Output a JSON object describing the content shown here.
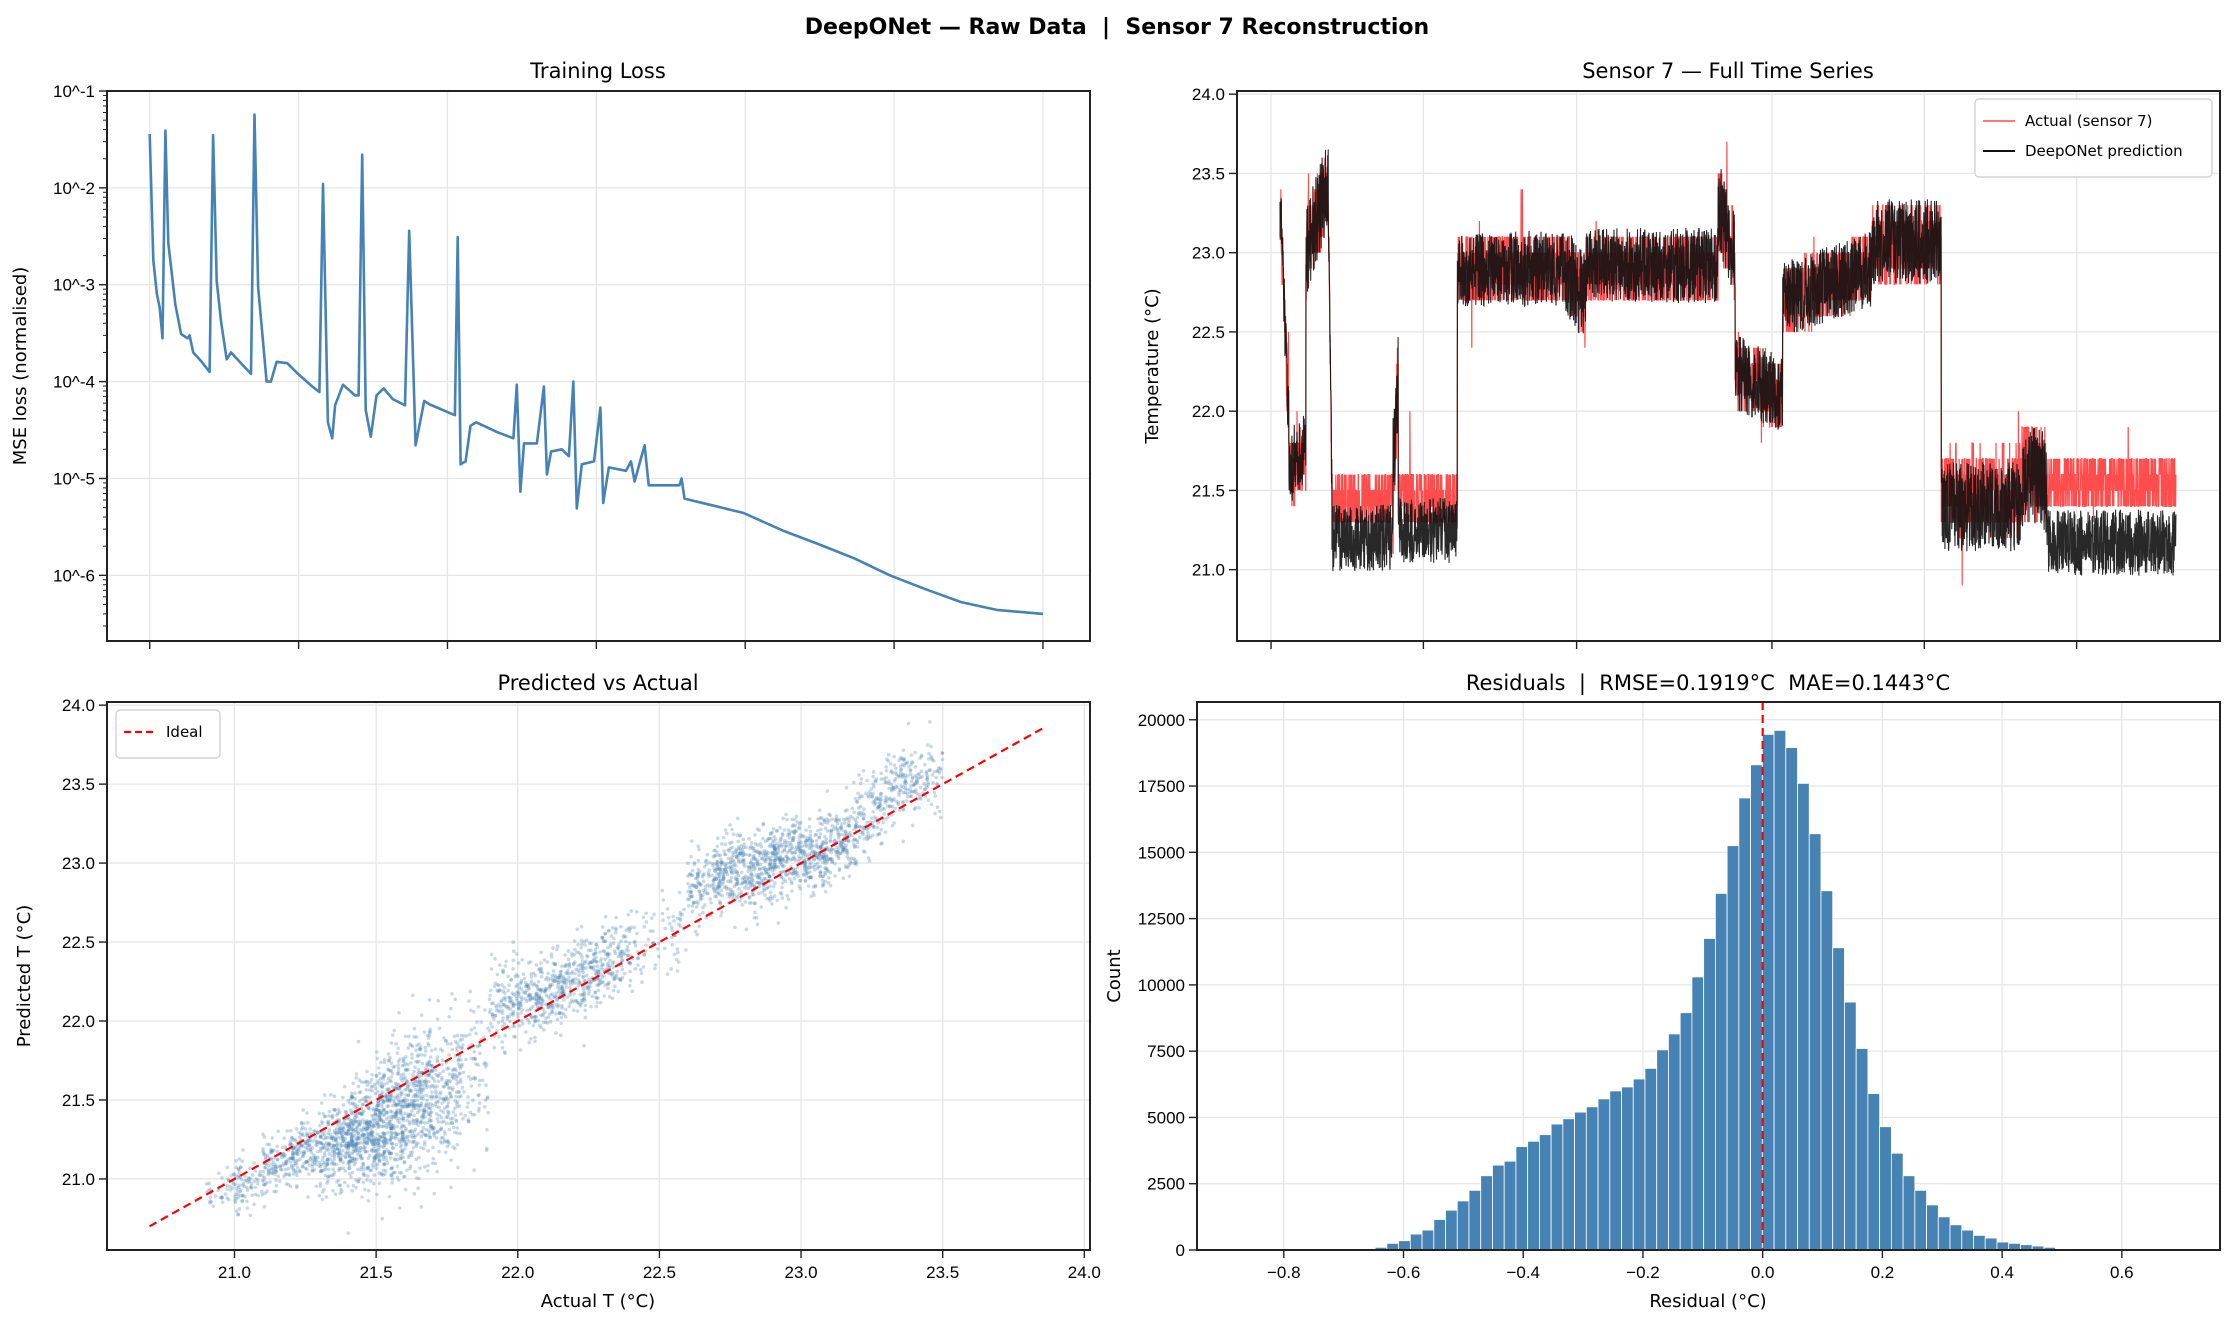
{
  "figure_title": "DeepONet — Raw Data  |  Sensor 7 Reconstruction",
  "colors": {
    "loss": "#4682b4",
    "actual": "#ff4d4d",
    "prediction": "#111111",
    "ideal": "#ff0000",
    "hist": "#4682b4",
    "zero_line": "#ff0000",
    "grid": "#e6e6e6"
  },
  "chart_data": [
    {
      "id": "training-loss",
      "type": "line",
      "title": "Training Loss",
      "xlabel": "",
      "ylabel": "MSE loss (normalised)",
      "yscale": "log",
      "ylim": [
        2.1e-07,
        0.1
      ],
      "xlim": [
        -287,
        6316
      ],
      "xticks": [
        0,
        1000,
        2000,
        3000,
        4000,
        5000,
        6000
      ],
      "xtick_labels_shown": false,
      "yticks": [
        1e-06,
        1e-05,
        0.0001,
        0.001,
        0.01,
        0.1
      ],
      "ytick_labels": [
        "10^-6",
        "10^-5",
        "10^-4",
        "10^-3",
        "10^-2",
        "10^-1"
      ],
      "grid": true,
      "points": [
        [
          0,
          0.036
        ],
        [
          24,
          0.0018
        ],
        [
          48,
          0.0008
        ],
        [
          67,
          0.00058
        ],
        [
          86,
          0.00028
        ],
        [
          105,
          0.039
        ],
        [
          125,
          0.0027
        ],
        [
          172,
          0.00063
        ],
        [
          211,
          0.00031
        ],
        [
          254,
          0.00028
        ],
        [
          268,
          0.0003
        ],
        [
          292,
          0.0002
        ],
        [
          349,
          0.00016
        ],
        [
          402,
          0.000126
        ],
        [
          426,
          0.035
        ],
        [
          450,
          0.0011
        ],
        [
          479,
          0.00042
        ],
        [
          517,
          0.00017
        ],
        [
          546,
          0.0002
        ],
        [
          613,
          0.000155
        ],
        [
          680,
          0.00012
        ],
        [
          704,
          0.057
        ],
        [
          728,
          0.00095
        ],
        [
          785,
          0.0001
        ],
        [
          814,
          0.0001
        ],
        [
          852,
          0.00016
        ],
        [
          924,
          0.000155
        ],
        [
          996,
          0.00012
        ],
        [
          1092,
          8.9e-05
        ],
        [
          1140,
          7.8e-05
        ],
        [
          1164,
          0.011
        ],
        [
          1197,
          3.8e-05
        ],
        [
          1226,
          2.6e-05
        ],
        [
          1245,
          5.7e-05
        ],
        [
          1298,
          9.3e-05
        ],
        [
          1379,
          7.2e-05
        ],
        [
          1403,
          7.2e-05
        ],
        [
          1427,
          0.022
        ],
        [
          1451,
          5.1e-05
        ],
        [
          1485,
          2.7e-05
        ],
        [
          1523,
          7.2e-05
        ],
        [
          1571,
          8.5e-05
        ],
        [
          1633,
          6.6e-05
        ],
        [
          1715,
          5.7e-05
        ],
        [
          1743,
          0.0036
        ],
        [
          1786,
          2.2e-05
        ],
        [
          1844,
          6.3e-05
        ],
        [
          1882,
          5.8e-05
        ],
        [
          2050,
          4.5e-05
        ],
        [
          2069,
          0.0031
        ],
        [
          2088,
          1.4e-05
        ],
        [
          2122,
          1.5e-05
        ],
        [
          2155,
          3.5e-05
        ],
        [
          2193,
          3.8e-05
        ],
        [
          2337,
          3e-05
        ],
        [
          2443,
          2.6e-05
        ],
        [
          2466,
          9.3e-05
        ],
        [
          2490,
          7.3e-06
        ],
        [
          2514,
          2.3e-05
        ],
        [
          2601,
          2.3e-05
        ],
        [
          2648,
          8.9e-05
        ],
        [
          2668,
          1.1e-05
        ],
        [
          2696,
          1.9e-05
        ],
        [
          2768,
          2e-05
        ],
        [
          2816,
          1.7e-05
        ],
        [
          2845,
          0.0001
        ],
        [
          2869,
          4.9e-06
        ],
        [
          2902,
          1.4e-05
        ],
        [
          2984,
          1.5e-05
        ],
        [
          3027,
          5.4e-05
        ],
        [
          3046,
          5.6e-06
        ],
        [
          3084,
          1.3e-05
        ],
        [
          3199,
          1.2e-05
        ],
        [
          3233,
          1.5e-05
        ],
        [
          3257,
          9.3e-06
        ],
        [
          3324,
          2.2e-05
        ],
        [
          3352,
          8.5e-06
        ],
        [
          3558,
          8.5e-06
        ],
        [
          3573,
          1e-05
        ],
        [
          3592,
          6.2e-06
        ],
        [
          3774,
          5.3e-06
        ],
        [
          3989,
          4.4e-06
        ],
        [
          4253,
          2.9e-06
        ],
        [
          4492,
          2.1e-06
        ],
        [
          4732,
          1.5e-06
        ],
        [
          4971,
          1e-06
        ],
        [
          5211,
          7.2e-07
        ],
        [
          5450,
          5.3e-07
        ],
        [
          5690,
          4.4e-07
        ],
        [
          6000,
          4e-07
        ]
      ]
    },
    {
      "id": "time-series",
      "type": "line",
      "title": "Sensor 7 — Full Time Series",
      "xlabel": "",
      "ylabel": "Temperature (°C)",
      "xlim": [
        -48,
        1049
      ],
      "ylim": [
        20.55,
        24.02
      ],
      "xticks": [
        -10,
        160,
        331,
        549,
        719,
        889
      ],
      "xtick_labels_shown": false,
      "yticks": [
        21.0,
        21.5,
        22.0,
        22.5,
        23.0,
        23.5,
        24.0
      ],
      "grid": true,
      "legend": {
        "placement": "top-right",
        "entries": [
          "Actual (sensor 7)",
          "DeepONet prediction"
        ]
      },
      "segments_columns": [
        "t_start",
        "t_end",
        "actual_start",
        "actual_end",
        "prediction_offset",
        "spread"
      ],
      "segments": [
        [
          0,
          10,
          23.3,
          21.9,
          0,
          0.25
        ],
        [
          10,
          29,
          21.6,
          21.7,
          0.05,
          0.25
        ],
        [
          29,
          54,
          23.0,
          23.45,
          0,
          0.3
        ],
        [
          54,
          58,
          23.2,
          21.5,
          0,
          0.2
        ],
        [
          58,
          126,
          21.45,
          21.45,
          -0.25,
          0.22
        ],
        [
          126,
          132,
          21.6,
          22.2,
          0,
          0.35
        ],
        [
          132,
          198,
          21.45,
          21.45,
          -0.2,
          0.22
        ],
        [
          198,
          319,
          22.9,
          22.9,
          0,
          0.25
        ],
        [
          319,
          341,
          22.9,
          22.7,
          0,
          0.3
        ],
        [
          341,
          489,
          22.9,
          22.9,
          0.02,
          0.25
        ],
        [
          489,
          508,
          23.3,
          23.0,
          0,
          0.3
        ],
        [
          508,
          561,
          22.25,
          22.1,
          0,
          0.25
        ],
        [
          561,
          661,
          22.7,
          22.9,
          0,
          0.25
        ],
        [
          661,
          738,
          23.05,
          23.05,
          0.02,
          0.28
        ],
        [
          738,
          828,
          21.5,
          21.5,
          -0.1,
          0.3
        ],
        [
          828,
          856,
          21.65,
          21.6,
          -0.05,
          0.35
        ],
        [
          856,
          1000,
          21.55,
          21.55,
          -0.38,
          0.22
        ]
      ]
    },
    {
      "id": "pred-vs-actual",
      "type": "scatter",
      "title": "Predicted vs Actual",
      "xlabel": "Actual T (°C)",
      "ylabel": "Predicted T (°C)",
      "xlim": [
        20.55,
        24.02
      ],
      "ylim": [
        20.55,
        24.02
      ],
      "xticks": [
        21.0,
        21.5,
        22.0,
        22.5,
        23.0,
        23.5,
        24.0
      ],
      "yticks": [
        21.0,
        21.5,
        22.0,
        22.5,
        23.0,
        23.5,
        24.0
      ],
      "grid": true,
      "legend": {
        "placement": "top-left",
        "entries": [
          "Ideal"
        ]
      },
      "ideal_line": [
        [
          20.7,
          20.7
        ],
        [
          23.86,
          23.86
        ]
      ],
      "strips_columns": [
        "actual_from",
        "predicted_mean",
        "predicted_sd",
        "relative_density"
      ],
      "strips": [
        [
          20.9,
          20.93,
          0.08,
          1
        ],
        [
          21.0,
          20.98,
          0.09,
          2
        ],
        [
          21.1,
          21.1,
          0.1,
          3
        ],
        [
          21.2,
          21.18,
          0.09,
          4
        ],
        [
          21.3,
          21.22,
          0.13,
          6
        ],
        [
          21.4,
          21.3,
          0.17,
          9
        ],
        [
          21.5,
          21.38,
          0.2,
          10
        ],
        [
          21.6,
          21.5,
          0.22,
          8
        ],
        [
          21.7,
          21.55,
          0.22,
          5
        ],
        [
          21.8,
          21.7,
          0.2,
          2
        ],
        [
          21.9,
          22.1,
          0.15,
          3
        ],
        [
          22.0,
          22.15,
          0.12,
          4
        ],
        [
          22.1,
          22.2,
          0.12,
          4
        ],
        [
          22.2,
          22.3,
          0.14,
          4
        ],
        [
          22.3,
          22.38,
          0.14,
          3
        ],
        [
          22.4,
          22.5,
          0.13,
          1
        ],
        [
          22.5,
          22.6,
          0.12,
          1
        ],
        [
          22.6,
          22.85,
          0.11,
          3
        ],
        [
          22.7,
          22.95,
          0.12,
          5
        ],
        [
          22.8,
          22.95,
          0.12,
          5
        ],
        [
          22.9,
          23.05,
          0.12,
          5
        ],
        [
          23.0,
          23.05,
          0.11,
          5
        ],
        [
          23.1,
          23.15,
          0.12,
          4
        ],
        [
          23.2,
          23.35,
          0.12,
          3
        ],
        [
          23.3,
          23.5,
          0.12,
          3
        ],
        [
          23.4,
          23.55,
          0.11,
          2
        ]
      ]
    },
    {
      "id": "residuals",
      "type": "bar",
      "title": "Residuals  |  RMSE=0.1919°C  MAE=0.1443°C",
      "xlabel": "Residual (°C)",
      "ylabel": "Count",
      "xlim": [
        -0.945,
        0.764
      ],
      "ylim": [
        0,
        20670
      ],
      "xticks": [
        -0.8,
        -0.6,
        -0.4,
        -0.2,
        0.0,
        0.2,
        0.4,
        0.6
      ],
      "xtick_labels": [
        "−0.8",
        "−0.6",
        "−0.4",
        "−0.2",
        "0.0",
        "0.2",
        "0.4",
        "0.6"
      ],
      "yticks": [
        0,
        2500,
        5000,
        7500,
        10000,
        12500,
        15000,
        17500,
        20000
      ],
      "grid": true,
      "vline": 0.0,
      "bin_start": -0.667,
      "bin_width": 0.0196,
      "counts": [
        50,
        100,
        250,
        350,
        600,
        750,
        1150,
        1500,
        1850,
        2250,
        2800,
        3200,
        3350,
        3900,
        4100,
        4350,
        4750,
        4950,
        5200,
        5400,
        5700,
        6000,
        6150,
        6450,
        6850,
        7550,
        8150,
        8950,
        10300,
        11750,
        13450,
        15250,
        17050,
        18300,
        19450,
        19600,
        18950,
        17600,
        15700,
        13550,
        11400,
        9350,
        7600,
        5900,
        4650,
        3650,
        2800,
        2250,
        1700,
        1250,
        950,
        750,
        550,
        450,
        300,
        250,
        200,
        150,
        100,
        50,
        20
      ]
    }
  ]
}
